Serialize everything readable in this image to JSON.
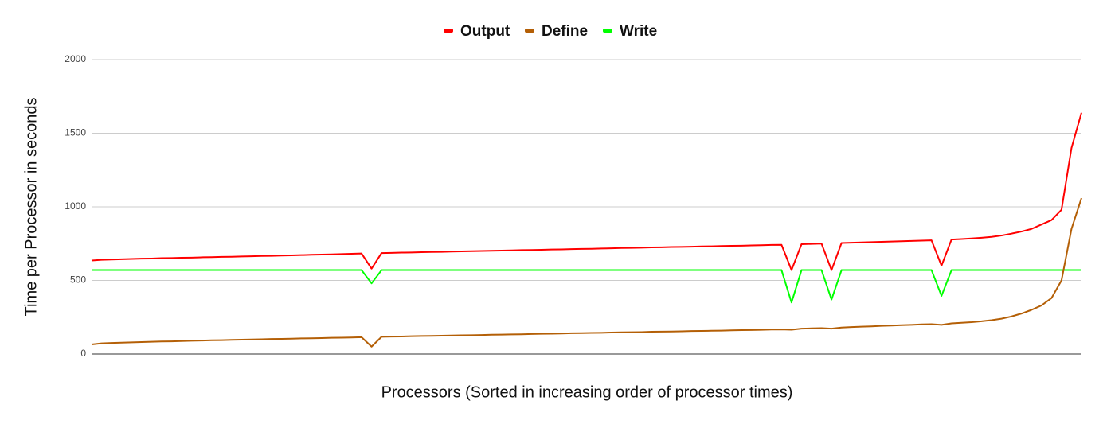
{
  "chart_data": {
    "type": "line",
    "x_label": "Processors (Sorted in increasing order of processor times)",
    "y_label": "Time per Processor in seconds",
    "ylim": [
      0,
      2000
    ],
    "yticks": [
      0,
      500,
      1000,
      1500,
      2000
    ],
    "grid": true,
    "legend": "top",
    "series": [
      {
        "name": "Output",
        "color": "#ff0000",
        "values": [
          635,
          640,
          642,
          644,
          646,
          648,
          649,
          651,
          652,
          654,
          655,
          657,
          658,
          660,
          661,
          663,
          664,
          666,
          667,
          669,
          670,
          672,
          674,
          676,
          677,
          679,
          681,
          683,
          580,
          686,
          687,
          689,
          690,
          692,
          693,
          694,
          696,
          697,
          699,
          700,
          701,
          703,
          704,
          706,
          707,
          708,
          710,
          711,
          713,
          714,
          715,
          717,
          718,
          720,
          721,
          722,
          724,
          725,
          727,
          728,
          729,
          731,
          732,
          734,
          735,
          736,
          738,
          739,
          741,
          742,
          570,
          746,
          748,
          750,
          570,
          754,
          756,
          758,
          760,
          762,
          764,
          766,
          768,
          770,
          772,
          600,
          778,
          781,
          785,
          790,
          796,
          805,
          818,
          832,
          850,
          880,
          910,
          980,
          1400,
          1640
        ]
      },
      {
        "name": "Define",
        "color": "#b45f06",
        "values": [
          65,
          72,
          75,
          77,
          79,
          81,
          83,
          85,
          86,
          88,
          90,
          91,
          93,
          94,
          96,
          97,
          99,
          100,
          102,
          103,
          104,
          106,
          107,
          108,
          110,
          111,
          112,
          114,
          50,
          117,
          118,
          119,
          121,
          122,
          123,
          124,
          126,
          127,
          128,
          129,
          131,
          132,
          133,
          134,
          136,
          137,
          138,
          139,
          141,
          142,
          143,
          144,
          146,
          147,
          148,
          149,
          151,
          152,
          153,
          154,
          156,
          157,
          158,
          159,
          161,
          162,
          163,
          164,
          166,
          167,
          165,
          172,
          174,
          176,
          172,
          180,
          183,
          186,
          188,
          191,
          193,
          196,
          198,
          201,
          203,
          198,
          208,
          212,
          216,
          222,
          230,
          240,
          255,
          275,
          300,
          330,
          380,
          500,
          850,
          1060
        ]
      },
      {
        "name": "Write",
        "color": "#00ff00",
        "values": [
          570,
          570,
          570,
          570,
          570,
          570,
          570,
          570,
          570,
          570,
          570,
          570,
          570,
          570,
          570,
          570,
          570,
          570,
          570,
          570,
          570,
          570,
          570,
          570,
          570,
          570,
          570,
          570,
          480,
          570,
          570,
          570,
          570,
          570,
          570,
          570,
          570,
          570,
          570,
          570,
          570,
          570,
          570,
          570,
          570,
          570,
          570,
          570,
          570,
          570,
          570,
          570,
          570,
          570,
          570,
          570,
          570,
          570,
          570,
          570,
          570,
          570,
          570,
          570,
          570,
          570,
          570,
          570,
          570,
          570,
          350,
          570,
          570,
          570,
          370,
          570,
          570,
          570,
          570,
          570,
          570,
          570,
          570,
          570,
          570,
          395,
          570,
          570,
          570,
          570,
          570,
          570,
          570,
          570,
          570,
          570,
          570,
          570,
          570,
          570
        ]
      }
    ]
  }
}
